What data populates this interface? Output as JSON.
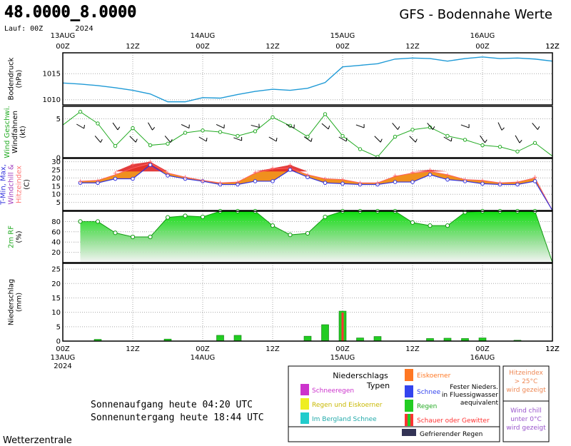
{
  "header": {
    "coords": "48.0000_8.0000",
    "run": "Lauf: 00Z",
    "title": "GFS - Bodennahe Werte",
    "footer_brand": "Wetterzentrale"
  },
  "time_axis": {
    "top_dates": [
      {
        "date": "13AUG",
        "year": "2024",
        "hour": 0
      },
      {
        "date": "14AUG",
        "hour": 24
      },
      {
        "date": "15AUG",
        "hour": 48
      },
      {
        "date": "16AUG",
        "hour": 72
      }
    ],
    "bottom_dates": [
      {
        "date": "14AUG",
        "hour": 24
      },
      {
        "date": "15AUG",
        "hour": 48
      },
      {
        "date": "16AUG",
        "hour": 72
      }
    ],
    "bottom_year": "2024",
    "ticks": [
      {
        "label": "00Z",
        "hour": 0
      },
      {
        "label": "12Z",
        "hour": 12
      },
      {
        "label": "00Z",
        "hour": 24
      },
      {
        "label": "12Z",
        "hour": 36
      },
      {
        "label": "00Z",
        "hour": 48
      },
      {
        "label": "12Z",
        "hour": 60
      },
      {
        "label": "00Z",
        "hour": 72
      },
      {
        "label": "12Z",
        "hour": 84
      }
    ]
  },
  "chart_data": [
    {
      "type": "line",
      "title": "Bodendruck",
      "ylabel": "(hPa)",
      "ylabel_parts": [
        "Bodendruck",
        "(hPa)"
      ],
      "yticks": [
        1010,
        1015
      ],
      "ylim": [
        1009,
        1019
      ],
      "color": "#1f9ad6",
      "x": [
        0,
        3,
        6,
        9,
        12,
        15,
        18,
        21,
        24,
        27,
        30,
        33,
        36,
        39,
        42,
        45,
        48,
        51,
        54,
        57,
        60,
        63,
        66,
        69,
        72,
        75,
        78,
        81,
        84
      ],
      "values": [
        1013.2,
        1013.0,
        1012.7,
        1012.3,
        1011.8,
        1011.1,
        1009.6,
        1009.6,
        1010.4,
        1010.3,
        1011.0,
        1011.6,
        1012.0,
        1011.8,
        1012.2,
        1013.3,
        1016.3,
        1016.6,
        1016.9,
        1017.8,
        1018.0,
        1017.9,
        1017.4,
        1017.9,
        1018.2,
        1017.9,
        1018.0,
        1017.8,
        1017.4
      ],
      "grid": true
    },
    {
      "type": "line",
      "title": "Wind Geschwi. Windfahnen",
      "ylabel": "(kt)",
      "ylabel_parts": [
        "Wind Geschwi.",
        "Windfahnen",
        "(kt)"
      ],
      "yticks": [
        0,
        5
      ],
      "ylim": [
        0,
        6.6
      ],
      "color": "#22aa22",
      "x": [
        0,
        3,
        6,
        9,
        12,
        15,
        18,
        21,
        24,
        27,
        30,
        33,
        36,
        39,
        42,
        45,
        48,
        51,
        54,
        57,
        60,
        63,
        66,
        69,
        72,
        75,
        78,
        81,
        84
      ],
      "values": [
        4.2,
        5.9,
        4.4,
        1.5,
        3.8,
        1.6,
        1.8,
        3.2,
        3.5,
        3.3,
        2.8,
        3.4,
        5.2,
        4.1,
        2.7,
        5.6,
        2.8,
        1.1,
        0.1,
        2.7,
        3.6,
        3.9,
        2.8,
        2.3,
        1.6,
        1.4,
        0.8,
        1.9,
        0.2
      ],
      "barb_dirs": [
        305,
        300,
        320,
        325,
        315,
        330,
        320,
        295,
        300,
        295,
        290,
        285,
        300,
        295,
        305,
        310,
        300,
        290,
        315,
        320,
        315,
        320,
        300,
        290,
        325,
        335,
        330,
        320,
        300
      ],
      "grid": true
    },
    {
      "type": "line",
      "title": "T-Min, Max, Windchill & Hitzeindex",
      "ylabel": "(C)",
      "ylabel_parts": [
        "T-Min, Max,",
        "Windchill &",
        "Hitzeindex",
        "(C)"
      ],
      "yticks": [
        5,
        10,
        15,
        20,
        25,
        30
      ],
      "ylim": [
        0,
        32
      ],
      "x": [
        3,
        6,
        9,
        12,
        15,
        18,
        21,
        24,
        27,
        30,
        33,
        36,
        39,
        42,
        45,
        48,
        51,
        54,
        57,
        60,
        63,
        66,
        69,
        72,
        75,
        78,
        81,
        84
      ],
      "series": [
        {
          "name": "T-Min",
          "color": "#3333dd",
          "values": [
            17,
            17,
            19.5,
            19.5,
            28,
            21.5,
            19.5,
            18,
            16,
            16,
            18,
            18,
            25,
            20.5,
            17,
            16.5,
            16,
            16,
            17.5,
            17.5,
            22,
            19,
            18,
            16.5,
            16,
            16,
            18,
            0
          ]
        },
        {
          "name": "T-Max",
          "color": "#dd3333",
          "values": [
            18,
            18.5,
            22,
            26,
            29,
            23,
            20.5,
            18.5,
            17,
            17.5,
            23,
            25.5,
            26,
            22,
            19.5,
            19,
            17,
            17,
            21,
            23,
            24,
            22,
            19,
            18.5,
            17,
            17.5,
            20,
            0
          ]
        },
        {
          "name": "Hitzeindex",
          "color": "#ff8080",
          "values": [
            18,
            18.5,
            23,
            28.5,
            30,
            23,
            20.5,
            18.5,
            17,
            17.5,
            23.5,
            26,
            28,
            22,
            19.5,
            19,
            17,
            17,
            21.5,
            23.5,
            25,
            22,
            19,
            18.5,
            17,
            17.5,
            20.5,
            0
          ]
        }
      ],
      "grid": true
    },
    {
      "type": "area",
      "title": "2m RF",
      "ylabel": "(%)",
      "ylabel_parts": [
        "2m RF",
        "(%)"
      ],
      "yticks": [
        20,
        40,
        60,
        80
      ],
      "ylim": [
        0,
        100
      ],
      "x": [
        3,
        6,
        9,
        12,
        15,
        18,
        21,
        24,
        27,
        30,
        33,
        36,
        39,
        42,
        45,
        48,
        51,
        54,
        57,
        60,
        63,
        66,
        69,
        72,
        75,
        78,
        81,
        84
      ],
      "values": [
        80,
        80,
        58,
        50,
        50,
        88,
        91,
        89,
        100,
        100,
        100,
        72,
        54,
        57,
        89,
        100,
        100,
        100,
        100,
        78,
        72,
        72,
        98,
        100,
        100,
        100,
        100,
        0
      ],
      "color": "#22dd22",
      "grid": true
    },
    {
      "type": "bar",
      "title": "Niederschlag",
      "ylabel": "(mm)",
      "ylabel_parts": [
        "Niederschlag",
        "(mm)"
      ],
      "yticks": [
        0,
        5,
        10,
        15,
        20,
        25
      ],
      "ylim": [
        0,
        27
      ],
      "x": [
        6,
        18,
        27,
        30,
        42,
        45,
        48,
        51,
        54,
        63,
        66,
        69,
        72,
        78
      ],
      "values": [
        0.6,
        0.7,
        2,
        2,
        1.7,
        5.7,
        10.4,
        1.1,
        1.6,
        0.9,
        1.0,
        0.9,
        1.1,
        0.3
      ],
      "series_type": [
        "Regen",
        "Regen",
        "Regen",
        "Regen",
        "Regen",
        "Regen",
        "Schauer",
        "Regen",
        "Regen",
        "Regen",
        "Regen",
        "Regen",
        "Regen",
        "Regen"
      ],
      "colors": {
        "Regen": "#22cc22",
        "Schauer": "#ff3333"
      },
      "grid": true
    }
  ],
  "legend": {
    "title": "Niederschlags Typen",
    "title_parts": [
      "Niederschlags",
      "Typen"
    ],
    "items": [
      {
        "label": "Schneeregen",
        "color": "#cc33cc"
      },
      {
        "label": "Regen und Eiskoerner",
        "color": "#eeee22"
      },
      {
        "label": "Im Bergland Schnee",
        "color": "#22cccc"
      },
      {
        "label": "Eiskoerner",
        "color": "#ff7722"
      },
      {
        "label": "Schnee",
        "color": "#3344ee"
      },
      {
        "label": "Regen",
        "color": "#22cc22"
      },
      {
        "label": "Schauer oder Gewitter",
        "color": "#ff3333"
      },
      {
        "label": "Gefrierender Regen",
        "color": "#333355"
      }
    ],
    "note": "Fester Nieders. in Fluessigwasser aequivalent",
    "note_parts": [
      "Fester Nieders.",
      "in Fluessigwasser",
      "aequivalent"
    ],
    "heat_note": "Hitzeindex > 25°C wird gezeigt",
    "heat_note_parts": [
      "Hitzeindex",
      "> 25°C",
      "wird gezeigt"
    ],
    "chill_note": "Wind chill unter 0°C wird gezeigt",
    "chill_note_parts": [
      "Wind chill",
      "unter 0°C",
      "wird gezeigt"
    ]
  },
  "sun": {
    "sunrise": "Sonnenaufgang heute 04:20 UTC",
    "sunset": "Sonnenuntergang heute 18:44 UTC"
  },
  "colors": {
    "frame": "#000000",
    "grid": "#b0b0b0",
    "pressure": "#1f9ad6",
    "wind": "#22aa22",
    "title_label": "#000000"
  }
}
